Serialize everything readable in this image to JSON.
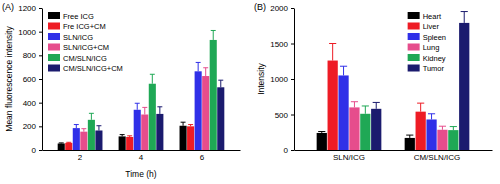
{
  "chart_data": [
    {
      "type": "bar",
      "title": "(A)",
      "x_label": "Time (h)",
      "y_label": "Mean fluorescence intensity",
      "categories": [
        "2",
        "4",
        "6"
      ],
      "series": [
        {
          "name": "Free ICG",
          "color": "#000000",
          "values": [
            55,
            115,
            205
          ],
          "errors": [
            5,
            15,
            30
          ]
        },
        {
          "name": "Fre ICG+CM",
          "color": "#ee1c25",
          "values": [
            60,
            110,
            200
          ],
          "errors": [
            5,
            10,
            15
          ]
        },
        {
          "name": "SLN/ICG",
          "color": "#3030e8",
          "values": [
            185,
            340,
            665
          ],
          "errors": [
            30,
            55,
            75
          ]
        },
        {
          "name": "SLN/ICG+CM",
          "color": "#e64d8c",
          "values": [
            155,
            300,
            625
          ],
          "errors": [
            25,
            60,
            70
          ]
        },
        {
          "name": "CM/SLN/ICG",
          "color": "#1fa855",
          "values": [
            255,
            560,
            930
          ],
          "errors": [
            55,
            80,
            80
          ]
        },
        {
          "name": "CM/SLN/ICG+CM",
          "color": "#1b1b6e",
          "values": [
            165,
            305,
            530
          ],
          "errors": [
            40,
            60,
            60
          ]
        }
      ],
      "ylim": [
        0,
        1200
      ],
      "yticks": [
        0,
        200,
        400,
        600,
        800,
        1000,
        1200
      ],
      "legend": "upper left"
    },
    {
      "type": "bar",
      "title": "(B)",
      "y_label": "Intensity",
      "categories": [
        "SLN/ICG",
        "CM/SLN/ICG"
      ],
      "series": [
        {
          "name": "Heart",
          "color": "#000000",
          "values": [
            240,
            170
          ],
          "errors": [
            20,
            40
          ]
        },
        {
          "name": "Liver",
          "color": "#ee1c25",
          "values": [
            1260,
            540
          ],
          "errors": [
            240,
            120
          ]
        },
        {
          "name": "Spleen",
          "color": "#3030e8",
          "values": [
            1050,
            430
          ],
          "errors": [
            130,
            80
          ]
        },
        {
          "name": "Lung",
          "color": "#e64d8c",
          "values": [
            600,
            285
          ],
          "errors": [
            80,
            50
          ]
        },
        {
          "name": "Kidney",
          "color": "#1fa855",
          "values": [
            510,
            280
          ],
          "errors": [
            110,
            50
          ]
        },
        {
          "name": "Tumor",
          "color": "#1b1b6e",
          "values": [
            580,
            1790
          ],
          "errors": [
            90,
            160
          ]
        }
      ],
      "ylim": [
        0,
        2000
      ],
      "yticks": [
        0,
        500,
        1000,
        1500,
        2000
      ],
      "legend": "upper right"
    }
  ]
}
